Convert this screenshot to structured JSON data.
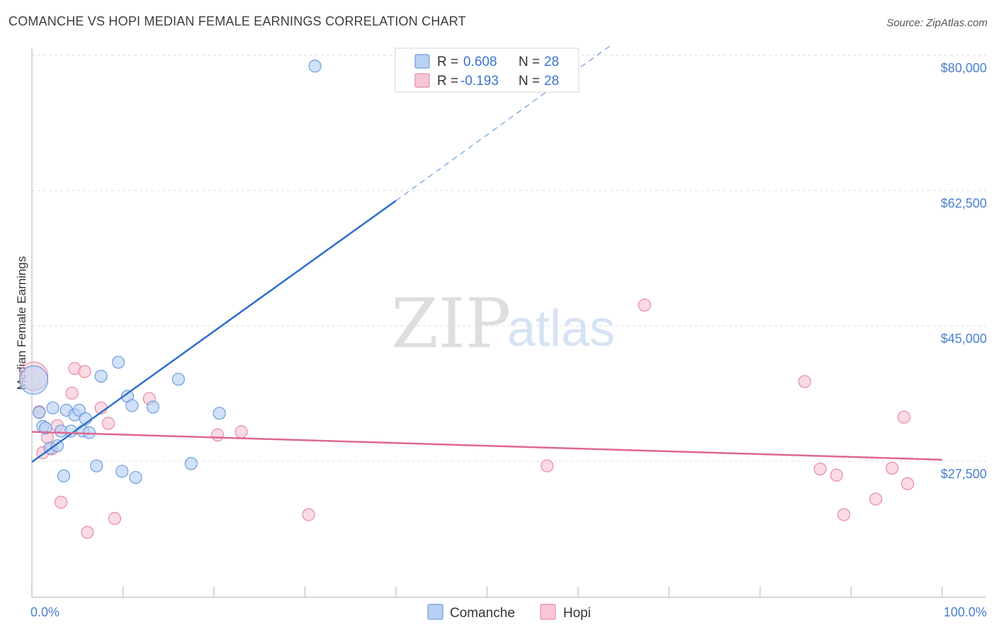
{
  "title": "COMANCHE VS HOPI MEDIAN FEMALE EARNINGS CORRELATION CHART",
  "source": "Source: ZipAtlas.com",
  "watermark": {
    "zip": "ZIP",
    "atlas": "atlas"
  },
  "colors": {
    "comanche_fill": "#b8d1f3",
    "comanche_stroke": "#6d9ddc",
    "comanche_line": "#2f6fcb",
    "hopi_fill": "#f8c6d5",
    "hopi_stroke": "#e88aa8",
    "hopi_line": "#e0678f",
    "grid": "#dcdcdc",
    "tick_text": "#4a7fcf"
  },
  "legend": {
    "rows": [
      {
        "series": "Comanche",
        "r_label": "R =",
        "r_value": "0.608",
        "n_label": "N =",
        "n_value": "28"
      },
      {
        "series": "Hopi",
        "r_label": "R =",
        "r_value": "-0.193",
        "n_label": "N =",
        "n_value": "28"
      }
    ]
  },
  "chart_data": {
    "type": "scatter",
    "title": "COMANCHE VS HOPI MEDIAN FEMALE EARNINGS CORRELATION CHART",
    "xlabel": "",
    "ylabel": "Median Female Earnings",
    "xlim": [
      0,
      100
    ],
    "ylim": [
      12000,
      82000
    ],
    "x_tick_labels": {
      "left": "0.0%",
      "right": "100.0%"
    },
    "y_ticks": [
      {
        "value": 27500,
        "label": "$27,500"
      },
      {
        "value": 45000,
        "label": "$45,000"
      },
      {
        "value": 62500,
        "label": "$62,500"
      },
      {
        "value": 80000,
        "label": "$80,000"
      }
    ],
    "series": [
      {
        "name": "Comanche",
        "r": 0.608,
        "n": 28,
        "trend": {
          "x0": 0,
          "y0": 27400,
          "x1": 40,
          "y1": 61200,
          "dash_x1": 63.5,
          "dash_y1": 81200
        },
        "points": [
          {
            "x": 0.2,
            "y": 38000,
            "big": true
          },
          {
            "x": 0.8,
            "y": 33800
          },
          {
            "x": 1.2,
            "y": 32000
          },
          {
            "x": 1.5,
            "y": 31800
          },
          {
            "x": 2.0,
            "y": 29200
          },
          {
            "x": 2.3,
            "y": 34400
          },
          {
            "x": 2.8,
            "y": 29500
          },
          {
            "x": 3.2,
            "y": 31400
          },
          {
            "x": 3.5,
            "y": 25600
          },
          {
            "x": 3.8,
            "y": 34100
          },
          {
            "x": 4.3,
            "y": 31400
          },
          {
            "x": 4.7,
            "y": 33500
          },
          {
            "x": 5.2,
            "y": 34100
          },
          {
            "x": 5.6,
            "y": 31400
          },
          {
            "x": 5.9,
            "y": 33000
          },
          {
            "x": 6.3,
            "y": 31200
          },
          {
            "x": 7.1,
            "y": 26900
          },
          {
            "x": 7.6,
            "y": 38500
          },
          {
            "x": 9.5,
            "y": 40300
          },
          {
            "x": 9.9,
            "y": 26200
          },
          {
            "x": 10.5,
            "y": 35900
          },
          {
            "x": 11.0,
            "y": 34700
          },
          {
            "x": 11.4,
            "y": 25400
          },
          {
            "x": 13.3,
            "y": 34500
          },
          {
            "x": 16.1,
            "y": 38100
          },
          {
            "x": 17.5,
            "y": 27200
          },
          {
            "x": 20.6,
            "y": 33700
          },
          {
            "x": 31.1,
            "y": 78600
          }
        ]
      },
      {
        "name": "Hopi",
        "r": -0.193,
        "n": 28,
        "trend": {
          "x0": 0,
          "y0": 31300,
          "x1": 100,
          "y1": 27700
        },
        "points": [
          {
            "x": 0.2,
            "y": 38500,
            "big": true
          },
          {
            "x": 0.8,
            "y": 33900
          },
          {
            "x": 1.2,
            "y": 28600
          },
          {
            "x": 1.7,
            "y": 30600
          },
          {
            "x": 2.2,
            "y": 29100
          },
          {
            "x": 2.8,
            "y": 32100
          },
          {
            "x": 3.2,
            "y": 22200
          },
          {
            "x": 4.4,
            "y": 36300
          },
          {
            "x": 4.7,
            "y": 39500
          },
          {
            "x": 5.8,
            "y": 39100
          },
          {
            "x": 6.1,
            "y": 18300
          },
          {
            "x": 7.6,
            "y": 34400
          },
          {
            "x": 8.4,
            "y": 32400
          },
          {
            "x": 9.1,
            "y": 20100
          },
          {
            "x": 12.9,
            "y": 35600
          },
          {
            "x": 20.4,
            "y": 30900
          },
          {
            "x": 23.0,
            "y": 31300
          },
          {
            "x": 30.4,
            "y": 20600
          },
          {
            "x": 56.6,
            "y": 26900
          },
          {
            "x": 67.3,
            "y": 47700
          },
          {
            "x": 84.9,
            "y": 37800
          },
          {
            "x": 86.6,
            "y": 26500
          },
          {
            "x": 88.4,
            "y": 25700
          },
          {
            "x": 89.2,
            "y": 20600
          },
          {
            "x": 92.7,
            "y": 22600
          },
          {
            "x": 94.5,
            "y": 26600
          },
          {
            "x": 95.8,
            "y": 33200
          },
          {
            "x": 96.2,
            "y": 24600
          }
        ]
      }
    ]
  }
}
